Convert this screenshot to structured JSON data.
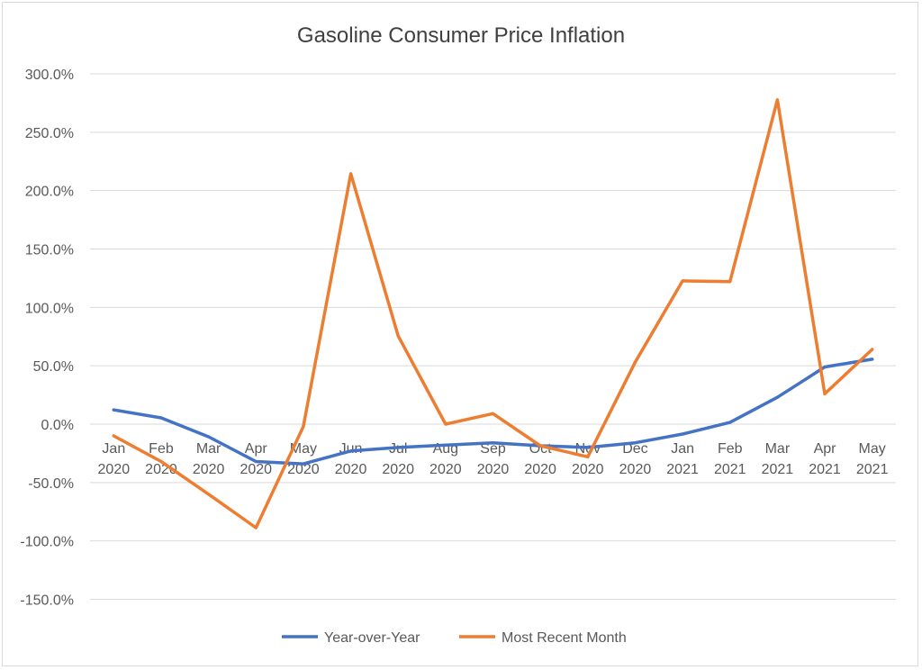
{
  "chart_data": {
    "type": "line",
    "title": "Gasoline Consumer Price Inflation",
    "xlabel": "",
    "ylabel": "",
    "categories": [
      "Jan 2020",
      "Feb 2020",
      "Mar 2020",
      "Apr 2020",
      "May 2020",
      "Jun 2020",
      "Jul 2020",
      "Aug 2020",
      "Sep 2020",
      "Oct 2020",
      "Nov 2020",
      "Dec 2020",
      "Jan 2021",
      "Feb 2021",
      "Mar 2021",
      "Apr 2021",
      "May 2021"
    ],
    "ylim": [
      -150,
      300
    ],
    "yticks": [
      300,
      250,
      200,
      150,
      100,
      50,
      0,
      -50,
      -100,
      -150
    ],
    "ytick_labels": [
      "300.0%",
      "250.0%",
      "200.0%",
      "150.0%",
      "100.0%",
      "50.0%",
      "0.0%",
      "-50.0%",
      "-100.0%",
      "-150.0%"
    ],
    "grid": true,
    "legend_position": "bottom",
    "series": [
      {
        "name": "Year-over-Year",
        "color": "#4472C4",
        "values": [
          12.3,
          5.4,
          -10.8,
          -32,
          -34,
          -23,
          -20,
          -18,
          -16,
          -18.5,
          -20,
          -16,
          -8.5,
          1.5,
          23,
          49,
          55.6
        ]
      },
      {
        "name": "Most Recent Month",
        "color": "#ED7D31",
        "values": [
          -10,
          -32,
          -60,
          -88.7,
          -2,
          214.5,
          75.6,
          0,
          9,
          -18.5,
          -28,
          53,
          122.7,
          122,
          277.8,
          26,
          64
        ]
      }
    ]
  }
}
